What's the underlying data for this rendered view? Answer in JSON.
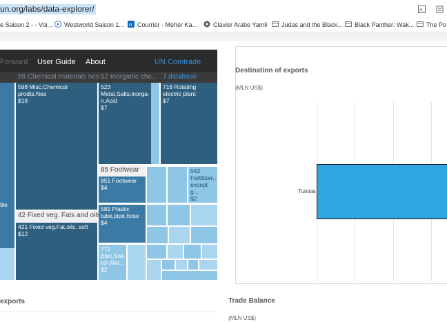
{
  "browser": {
    "url": "un.org/labs/data-explorer/",
    "bookmarks": [
      {
        "label": "e Saison 2 - - Voi...",
        "icon": "none"
      },
      {
        "label": "Westworld Saison 1...",
        "icon": "play-icon"
      },
      {
        "label": "Courrier - Meher Ka...",
        "icon": "outlook-icon"
      },
      {
        "label": "Clavier Arabe Yamli",
        "icon": "globe-icon"
      },
      {
        "label": "Judas and the Black...",
        "icon": "film-icon"
      },
      {
        "label": "Black Panther: Wak...",
        "icon": "film-icon"
      },
      {
        "label": "The Po",
        "icon": "film-icon"
      }
    ]
  },
  "app": {
    "nav": {
      "forward": "Forward",
      "user_guide": "User Guide",
      "about": "About",
      "un_comtrade": "UN Comtrade",
      "database": "database"
    },
    "subheader": [
      "59 Chemical materials nes",
      "52 Inorganic che...",
      "7"
    ]
  },
  "treemap": {
    "cells": [
      {
        "name": "598 Misc.Chemical prodts.Nes",
        "value": "$18"
      },
      {
        "name": "523 Metal,Salts,inorga-n.Acid",
        "value": "$7"
      },
      {
        "name": "716 Rotating electric plant",
        "value": "$7"
      },
      {
        "name": "85 Footwear",
        "value": ""
      },
      {
        "name": "851 Footwear",
        "value": "$4"
      },
      {
        "name": "562 Fertilizer,-except g...",
        "value": "$2"
      },
      {
        "name": "42 Fixed veg. Fats and oils",
        "value": ""
      },
      {
        "name": "421 Fixed veg.Fat,oils, soft",
        "value": "$12"
      },
      {
        "name": "581 Plastic tube,pipe,hose",
        "value": "$4"
      },
      {
        "name": "772 Elec.Swi-tch.Rel...",
        "value": "$2"
      },
      {
        "name": "tile",
        "value": ""
      }
    ]
  },
  "destination": {
    "title": "Destination of exports",
    "unit": "(MLN US$)",
    "chart_data": {
      "type": "bar",
      "orientation": "horizontal",
      "categories": [
        "Tunisia"
      ],
      "values": [
        null
      ]
    }
  },
  "bottom": {
    "exports_title": "exports",
    "trade_balance_title": "Trade Balance",
    "trade_balance_unit": "(MLN US$)"
  }
}
